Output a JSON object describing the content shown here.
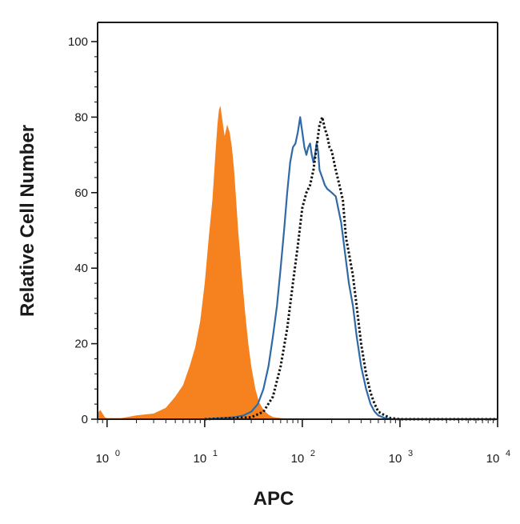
{
  "chart_data": {
    "type": "area",
    "xlabel": "APC",
    "ylabel": "Relative Cell Number",
    "xscale": "log",
    "xlim": [
      0.8,
      10000
    ],
    "ylim": [
      0,
      100
    ],
    "yticks": [
      0,
      20,
      40,
      60,
      80,
      100
    ],
    "xticks": [
      {
        "value": 1,
        "base": "10",
        "exp": "0"
      },
      {
        "value": 10,
        "base": "10",
        "exp": "1"
      },
      {
        "value": 100,
        "base": "10",
        "exp": "2"
      },
      {
        "value": 1000,
        "base": "10",
        "exp": "3"
      },
      {
        "value": 10000,
        "base": "10",
        "exp": "4"
      }
    ],
    "grid": false,
    "legend": "none",
    "series": [
      {
        "style": "filled",
        "color": "#f5821f",
        "x": [
          0.8,
          0.85,
          0.9,
          0.95,
          1.0,
          1.4,
          2.0,
          3.0,
          4.0,
          5.0,
          6.0,
          7.0,
          8.0,
          9.0,
          10.0,
          11.0,
          12.0,
          13.0,
          13.5,
          14.0,
          14.5,
          15.0,
          16.0,
          17.0,
          18.0,
          19.0,
          20.0,
          21.0,
          22.0,
          24.0,
          26.0,
          28.0,
          30.0,
          33.0,
          36.0,
          40.0,
          45.0,
          50.0,
          60.0,
          70.0,
          80.0,
          100.0
        ],
        "y": [
          1.5,
          2.5,
          1.5,
          0.5,
          0.3,
          0.3,
          1.0,
          1.5,
          3.0,
          6.0,
          9.0,
          14.0,
          19.0,
          26.0,
          36.0,
          48.0,
          58.0,
          72.0,
          78.0,
          82.0,
          83.0,
          80.0,
          75.0,
          78.0,
          76.0,
          72.0,
          66.0,
          58.0,
          50.0,
          38.0,
          28.0,
          20.0,
          14.0,
          8.0,
          4.5,
          2.5,
          1.2,
          0.6,
          0.3,
          0.2,
          0.1,
          0.0
        ]
      },
      {
        "style": "solid",
        "color": "#2f6aa6",
        "x": [
          10.0,
          20.0,
          25.0,
          30.0,
          35.0,
          40.0,
          45.0,
          50.0,
          55.0,
          60.0,
          65.0,
          70.0,
          75.0,
          80.0,
          85.0,
          90.0,
          95.0,
          100.0,
          105.0,
          110.0,
          115.0,
          120.0,
          125.0,
          130.0,
          135.0,
          140.0,
          145.0,
          150.0,
          160.0,
          170.0,
          180.0,
          200.0,
          220.0,
          250.0,
          280.0,
          300.0,
          330.0,
          360.0,
          400.0,
          450.0,
          500.0,
          550.0,
          600.0,
          700.0,
          800.0,
          1000.0,
          10000.0
        ],
        "y": [
          0.0,
          0.5,
          1.0,
          2.0,
          4.0,
          8.0,
          14.0,
          22.0,
          30.0,
          40.0,
          50.0,
          60.0,
          68.0,
          72.0,
          73.0,
          76.0,
          80.0,
          76.0,
          72.0,
          70.0,
          72.0,
          73.0,
          70.0,
          68.0,
          70.0,
          73.0,
          71.0,
          66.0,
          64.0,
          62.0,
          61.0,
          60.0,
          59.0,
          52.0,
          42.0,
          36.0,
          30.0,
          22.0,
          14.0,
          8.0,
          4.0,
          2.0,
          1.0,
          0.3,
          0.0,
          0.0,
          0.0
        ]
      },
      {
        "style": "dotted",
        "color": "#111111",
        "x": [
          10.0,
          30.0,
          40.0,
          50.0,
          60.0,
          70.0,
          80.0,
          90.0,
          100.0,
          110.0,
          120.0,
          130.0,
          140.0,
          150.0,
          160.0,
          170.0,
          180.0,
          190.0,
          200.0,
          220.0,
          240.0,
          260.0,
          280.0,
          300.0,
          330.0,
          360.0,
          400.0,
          450.0,
          500.0,
          550.0,
          600.0,
          700.0,
          800.0,
          1000.0,
          10000.0
        ],
        "y": [
          0.0,
          0.5,
          2.0,
          6.0,
          14.0,
          24.0,
          36.0,
          46.0,
          56.0,
          60.0,
          62.0,
          66.0,
          72.0,
          78.0,
          80.0,
          77.0,
          75.0,
          72.0,
          71.0,
          66.0,
          62.0,
          58.0,
          48.0,
          44.0,
          38.0,
          30.0,
          20.0,
          12.0,
          7.0,
          4.0,
          2.0,
          1.0,
          0.3,
          0.0,
          0.0
        ]
      }
    ]
  }
}
